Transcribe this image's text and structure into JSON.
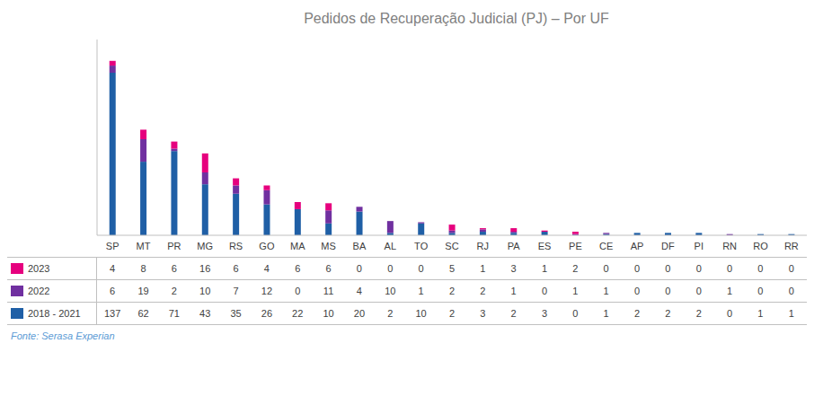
{
  "chart_data": {
    "type": "bar",
    "title": "Pedidos de Recuperação Judicial (PJ) – Por UF",
    "categories": [
      "SP",
      "MT",
      "PR",
      "MG",
      "RS",
      "GO",
      "MA",
      "MS",
      "BA",
      "AL",
      "TO",
      "SC",
      "RJ",
      "PA",
      "ES",
      "PE",
      "CE",
      "AP",
      "DF",
      "PI",
      "RN",
      "RO",
      "RR"
    ],
    "series": [
      {
        "name": "2018 - 2021",
        "color": "#1f5fa6",
        "values": [
          137,
          62,
          71,
          43,
          35,
          26,
          22,
          10,
          20,
          2,
          10,
          2,
          3,
          2,
          3,
          0,
          1,
          2,
          2,
          2,
          0,
          1,
          1
        ]
      },
      {
        "name": "2022",
        "color": "#7030a0",
        "values": [
          6,
          19,
          2,
          10,
          7,
          12,
          0,
          11,
          4,
          10,
          1,
          2,
          2,
          1,
          0,
          1,
          1,
          0,
          0,
          0,
          1,
          0,
          0
        ]
      },
      {
        "name": "2023",
        "color": "#e6007e",
        "values": [
          4,
          8,
          6,
          16,
          6,
          4,
          6,
          6,
          0,
          0,
          0,
          5,
          1,
          3,
          1,
          2,
          0,
          0,
          0,
          0,
          0,
          0,
          0
        ]
      }
    ],
    "stacked": true,
    "ylim": [
      0,
      165
    ],
    "tick_labels": "x",
    "annotations": [
      "Fonte: Serasa Experian"
    ]
  }
}
